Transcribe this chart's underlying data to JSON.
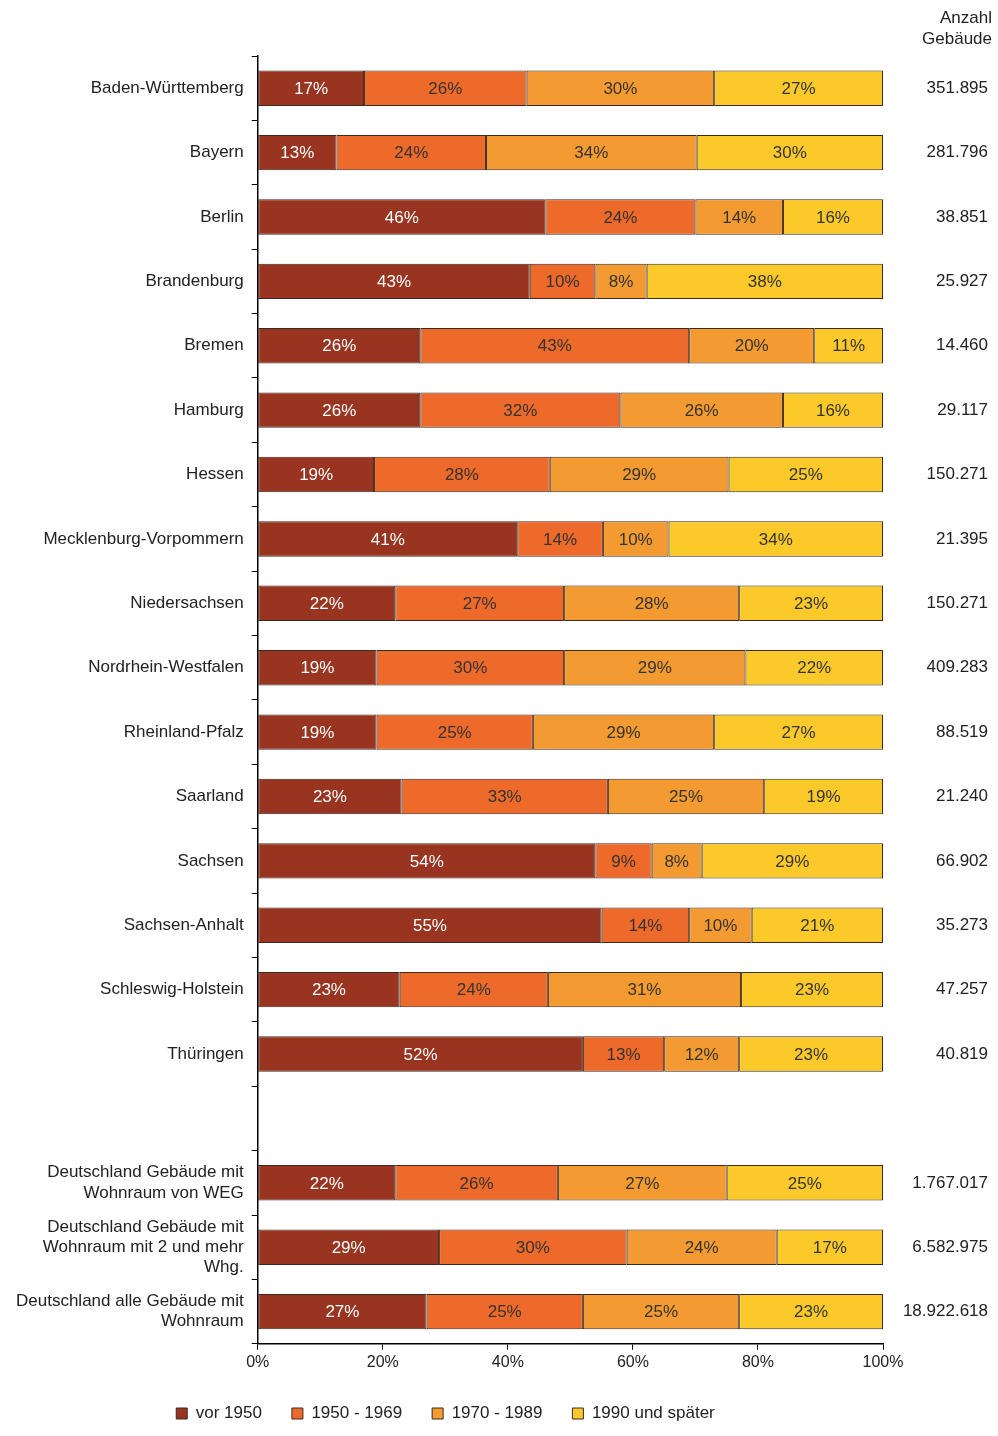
{
  "chart_data": {
    "type": "bar",
    "orientation": "horizontal",
    "stacked": true,
    "grid": false,
    "legend": "bottom",
    "categories": [
      "Baden-Württemberg",
      "Bayern",
      "Berlin",
      "Brandenburg",
      "Bremen",
      "Hamburg",
      "Hessen",
      "Mecklenburg-Vorpommern",
      "Niedersachsen",
      "Nordrhein-Westfalen",
      "Rheinland-Pfalz",
      "Saarland",
      "Sachsen",
      "Sachsen-Anhalt",
      "Schleswig-Holstein",
      "Thüringen",
      null,
      "Deutschland Gebäude mit Wohnraum von WEG",
      "Deutschland Gebäude mit Wohnraum mit 2 und mehr Whg.",
      "Deutschland alle Gebäude mit Wohnraum"
    ],
    "series": [
      {
        "name": "vor 1950",
        "color": "#98341f",
        "values": [
          17,
          12.6,
          46,
          43.5,
          26,
          26,
          18.6,
          41.5,
          22,
          19,
          19,
          23,
          54,
          55,
          22.7,
          52,
          null,
          22,
          29,
          27
        ],
        "value_labels": [
          "17%",
          "13%",
          "46%",
          "43%",
          "26%",
          "26%",
          "19%",
          "41%",
          "22%",
          "19%",
          "19%",
          "23%",
          "54%",
          "55%",
          "23%",
          "52%",
          null,
          "22%",
          "29%",
          "27%"
        ]
      },
      {
        "name": "1950 - 1969",
        "color": "#ee6a2a",
        "values": [
          26,
          23.9,
          24,
          10.5,
          43,
          32,
          28.1,
          13.7,
          27,
          30,
          25,
          33,
          9,
          14,
          23.7,
          13,
          null,
          26,
          30,
          25
        ],
        "value_labels": [
          "26%",
          "24%",
          "24%",
          "10%",
          "43%",
          "32%",
          "28%",
          "14%",
          "27%",
          "30%",
          "25%",
          "33%",
          "9%",
          "14%",
          "24%",
          "13%",
          null,
          "26%",
          "30%",
          "25%"
        ]
      },
      {
        "name": "1970 - 1989",
        "color": "#f39a30",
        "values": [
          30,
          33.7,
          14,
          8.2,
          20,
          26,
          28.6,
          10.5,
          28,
          29,
          29,
          25,
          8,
          10,
          30.9,
          12,
          null,
          27,
          24,
          25
        ],
        "value_labels": [
          "30%",
          "34%",
          "14%",
          "8%",
          "20%",
          "26%",
          "29%",
          "10%",
          "28%",
          "29%",
          "29%",
          "25%",
          "8%",
          "10%",
          "31%",
          "12%",
          null,
          "27%",
          "24%",
          "25%"
        ]
      },
      {
        "name": "1990 und später",
        "color": "#fcc92a",
        "values": [
          27,
          29.8,
          16,
          37.8,
          11,
          16,
          24.7,
          34.3,
          23,
          22,
          27,
          19,
          29,
          21,
          22.7,
          23,
          null,
          25,
          17,
          23
        ],
        "value_labels": [
          "27%",
          "30%",
          "16%",
          "38%",
          "11%",
          "16%",
          "25%",
          "34%",
          "23%",
          "22%",
          "27%",
          "19%",
          "29%",
          "21%",
          "23%",
          "23%",
          null,
          "25%",
          "17%",
          "23%"
        ]
      }
    ],
    "xlim": [
      0,
      100
    ],
    "xticks": [
      {
        "value": 0,
        "label": "0%"
      },
      {
        "value": 20,
        "label": "20%"
      },
      {
        "value": 40,
        "label": "40%"
      },
      {
        "value": 60,
        "label": "60%"
      },
      {
        "value": 80,
        "label": "80%"
      },
      {
        "value": 100,
        "label": "100%"
      }
    ],
    "annotations": [
      "Anzahl Gebäude",
      "351.895",
      "281.796",
      "38.851",
      "25.927",
      "14.460",
      "29.117",
      "150.271",
      "21.395",
      "150.271",
      "409.283",
      "88.519",
      "21.240",
      "66.902",
      "35.273",
      "47.257",
      "40.819",
      "1.767.017",
      "6.582.975",
      "18.922.618"
    ]
  }
}
